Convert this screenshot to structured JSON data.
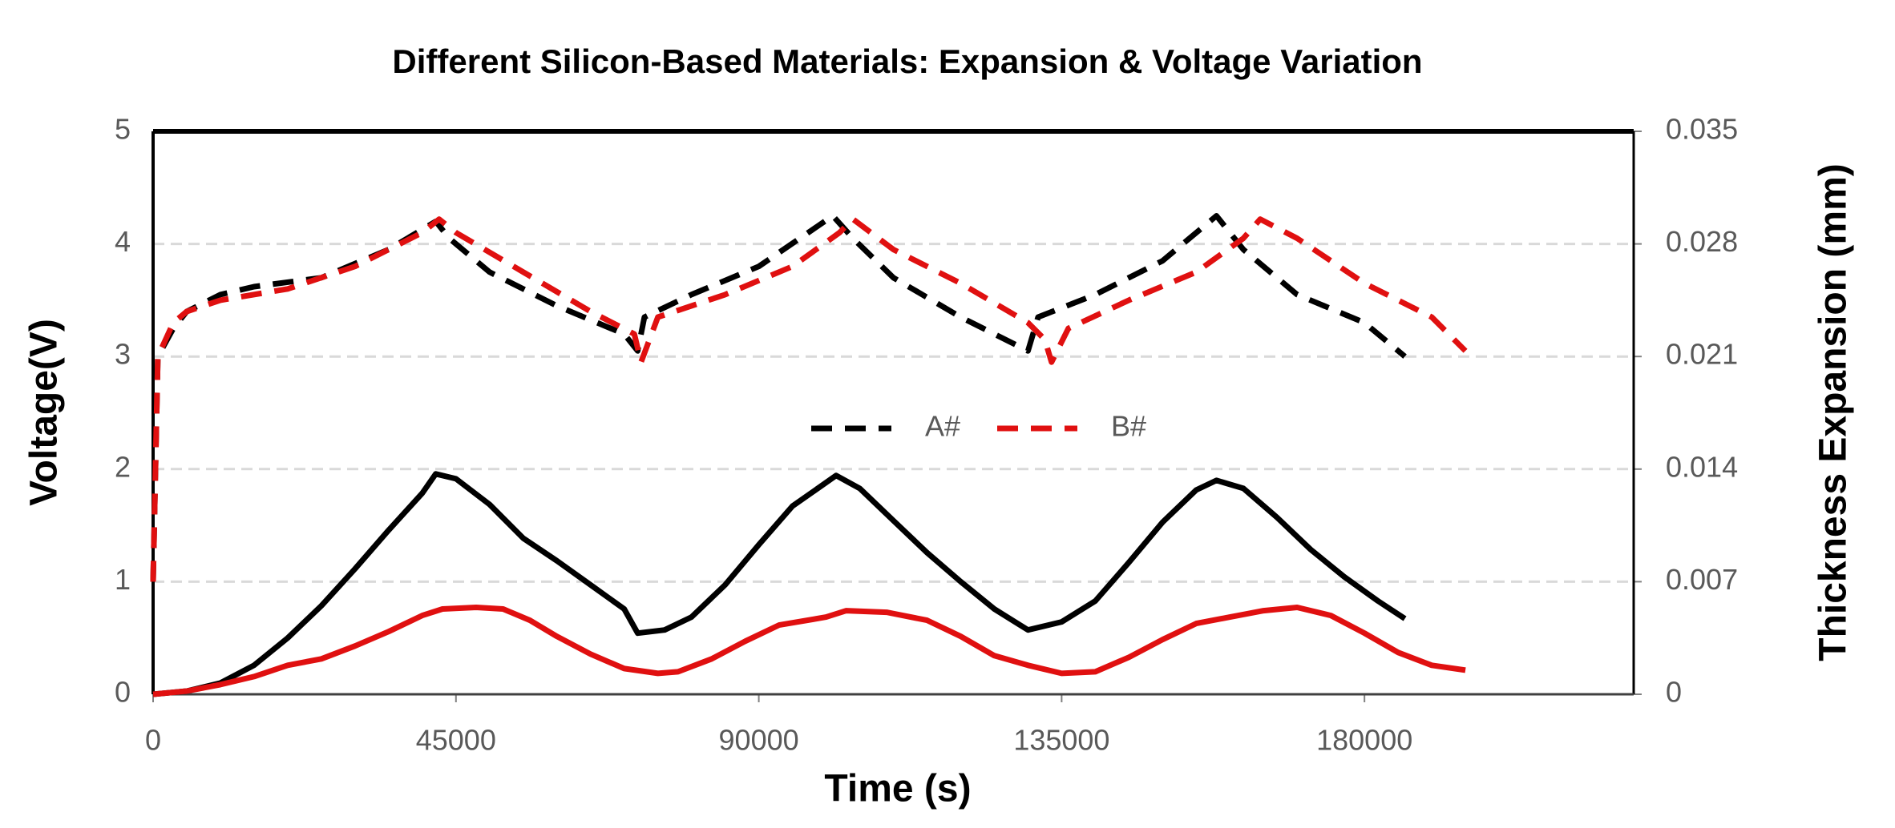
{
  "chart_data": {
    "type": "line",
    "title": "Different Silicon-Based Materials: Expansion & Voltage Variation",
    "x_label": "Time (s)",
    "y_label": "Voltage(V)",
    "y2_label": "Thickness Expansion (mm)",
    "xlim": [
      0,
      220000
    ],
    "xticks": [
      0,
      45000,
      90000,
      135000,
      180000
    ],
    "ylim": [
      0,
      5
    ],
    "yticks": [
      0,
      1,
      2,
      3,
      4,
      5
    ],
    "y2lim": [
      0,
      0.035
    ],
    "y2ticks": [
      0,
      0.007,
      0.014,
      0.021,
      0.028,
      0.035
    ],
    "grid": true,
    "legend": "center",
    "series": [
      {
        "name": "A#",
        "color": "#000000",
        "line_style": "dashed",
        "x": [
          0,
          700,
          3000,
          5000,
          10000,
          15000,
          25000,
          35000,
          42000,
          44000,
          50000,
          60000,
          70000,
          72000,
          73000,
          80000,
          90000,
          101000,
          104000,
          110000,
          120000,
          130000,
          131500,
          140000,
          150000,
          158000,
          162000,
          170000,
          180000,
          186000
        ],
        "values": [
          1.0,
          3.0,
          3.25,
          3.4,
          3.55,
          3.62,
          3.7,
          3.95,
          4.2,
          4.05,
          3.75,
          3.45,
          3.2,
          3.05,
          3.35,
          3.55,
          3.8,
          4.25,
          4.05,
          3.7,
          3.35,
          3.05,
          3.35,
          3.55,
          3.85,
          4.25,
          3.95,
          3.55,
          3.3,
          3.0
        ]
      },
      {
        "name": "B#",
        "color": "#e01010",
        "line_style": "dashed",
        "x": [
          0,
          700,
          3000,
          5000,
          10000,
          20000,
          30000,
          40000,
          42500,
          45000,
          55000,
          65000,
          71500,
          72500,
          75000,
          85000,
          95000,
          102000,
          104000,
          110000,
          120000,
          130000,
          132500,
          133500,
          136000,
          145000,
          155000,
          162000,
          164500,
          170000,
          180000,
          190000,
          195000
        ],
        "values": [
          1.0,
          3.0,
          3.3,
          3.4,
          3.5,
          3.6,
          3.8,
          4.1,
          4.22,
          4.1,
          3.75,
          3.4,
          3.2,
          2.95,
          3.35,
          3.55,
          3.8,
          4.1,
          4.22,
          3.95,
          3.65,
          3.3,
          3.15,
          2.95,
          3.25,
          3.5,
          3.75,
          4.05,
          4.22,
          4.05,
          3.65,
          3.35,
          3.05
        ]
      },
      {
        "color": "#000000",
        "line_style": "solid",
        "axis": "y2",
        "x": [
          0,
          5000,
          10000,
          15000,
          20000,
          25000,
          30000,
          35000,
          40000,
          42000,
          45000,
          50000,
          55000,
          60000,
          65000,
          70000,
          72000,
          76000,
          80000,
          85000,
          90000,
          95000,
          101500,
          105000,
          110000,
          115000,
          120000,
          125000,
          130000,
          135000,
          140000,
          145000,
          150000,
          155000,
          158000,
          162000,
          167000,
          172000,
          177000,
          182000,
          186000
        ],
        "values": [
          0,
          0.0002,
          0.0007,
          0.0018,
          0.0035,
          0.0055,
          0.0078,
          0.0102,
          0.0125,
          0.0137,
          0.0134,
          0.0118,
          0.0097,
          0.0083,
          0.0068,
          0.0053,
          0.0038,
          0.004,
          0.0048,
          0.0068,
          0.0093,
          0.0117,
          0.0136,
          0.0128,
          0.0108,
          0.0088,
          0.007,
          0.0053,
          0.004,
          0.0045,
          0.0058,
          0.0082,
          0.0107,
          0.0127,
          0.0133,
          0.0128,
          0.011,
          0.009,
          0.0073,
          0.0058,
          0.0047
        ]
      },
      {
        "color": "#e01010",
        "line_style": "solid",
        "axis": "y2",
        "x": [
          0,
          5000,
          10000,
          15000,
          20000,
          25000,
          30000,
          35000,
          40000,
          43000,
          48000,
          52000,
          56000,
          60000,
          65000,
          70000,
          75000,
          78000,
          83000,
          88000,
          93000,
          100000,
          103000,
          109000,
          115000,
          120000,
          125000,
          130000,
          135000,
          140000,
          145000,
          150000,
          155000,
          160000,
          165000,
          170000,
          175000,
          180000,
          185000,
          190000,
          195000
        ],
        "values": [
          0,
          0.0002,
          0.0006,
          0.0011,
          0.0018,
          0.0022,
          0.003,
          0.0039,
          0.0049,
          0.0053,
          0.0054,
          0.0053,
          0.0046,
          0.0036,
          0.0025,
          0.0016,
          0.0013,
          0.0014,
          0.0022,
          0.0033,
          0.0043,
          0.0048,
          0.0052,
          0.0051,
          0.0046,
          0.0036,
          0.0024,
          0.0018,
          0.0013,
          0.0014,
          0.0023,
          0.0034,
          0.0044,
          0.0048,
          0.0052,
          0.0054,
          0.0049,
          0.0038,
          0.0026,
          0.0018,
          0.0015
        ]
      }
    ]
  }
}
